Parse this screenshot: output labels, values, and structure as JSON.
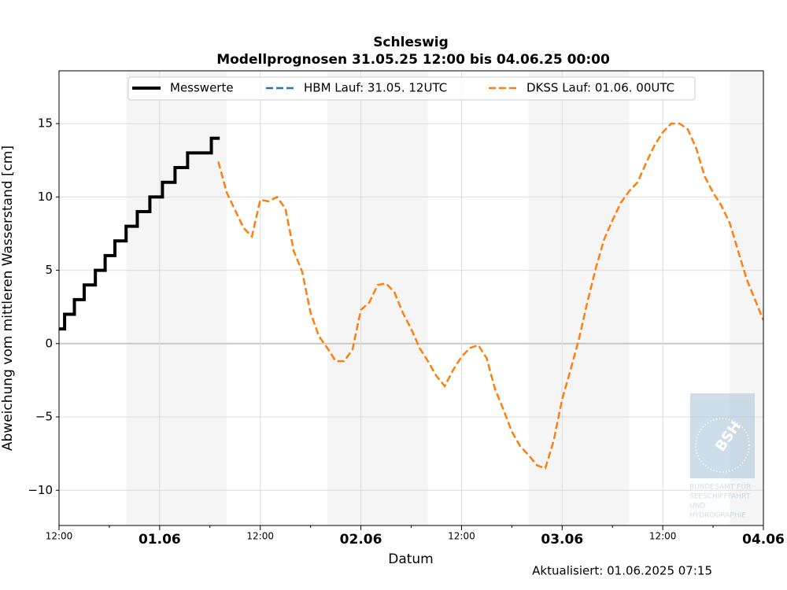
{
  "chart_data": {
    "type": "line",
    "title": "Schleswig",
    "subtitle": "Modellprognosen 31.05.25 12:00 bis 04.06.25 00:00",
    "xlabel": "Datum",
    "ylabel": "Abweichung vom mittleren Wasserstand [cm]",
    "footer": "Aktualisiert: 01.06.2025 07:15",
    "watermark": {
      "logo": "BSH",
      "lines": [
        "BUNDESAMT FÜR",
        "SEESCHIFFFAHRT",
        "UND",
        "HYDROGRAPHIE"
      ]
    },
    "xlim": [
      "31.05.25 12:00",
      "04.06.25 00:00"
    ],
    "ylim": [
      -12.4,
      18.6
    ],
    "yticks": [
      {
        "value": -10,
        "label": "−10"
      },
      {
        "value": -5,
        "label": "−5"
      },
      0,
      5,
      10,
      15
    ],
    "xticks": [
      {
        "value": "31.05.25 12:00",
        "label": "12:00"
      },
      {
        "value": "01.06.25 00:00",
        "label": "01.06"
      },
      {
        "value": "01.06.25 12:00",
        "label": "12:00"
      },
      {
        "value": "02.06.25 00:00",
        "label": "02.06"
      },
      {
        "value": "02.06.25 12:00",
        "label": "12:00"
      },
      {
        "value": "03.06.25 00:00",
        "label": "03.06"
      },
      {
        "value": "03.06.25 12:00",
        "label": "12:00"
      },
      {
        "value": "04.06.25 00:00",
        "label": "04.06"
      }
    ],
    "xminorticks": [
      "31.05.25 18:00",
      "01.06.25 06:00",
      "01.06.25 18:00",
      "02.06.25 06:00",
      "02.06.25 18:00",
      "03.06.25 06:00",
      "03.06.25 18:00"
    ],
    "shaded_spans": [
      [
        "31.05.25 20:00",
        "01.06.25 08:00"
      ],
      [
        "01.06.25 20:00",
        "02.06.25 08:00"
      ],
      [
        "02.06.25 20:00",
        "03.06.25 08:00"
      ],
      [
        "03.06.25 20:00",
        "04.06.25 00:00"
      ]
    ],
    "grid": true,
    "legend": "upper center",
    "series": [
      {
        "name": "Messwerte",
        "color": "#000000",
        "style": "steps",
        "x": [
          "31.05.25 12:00",
          "31.05.25 12:40",
          "31.05.25 13:50",
          "31.05.25 15:00",
          "31.05.25 16:20",
          "31.05.25 17:30",
          "31.05.25 18:40",
          "31.05.25 20:00",
          "31.05.25 21:20",
          "31.05.25 22:50",
          "01.06.25 00:20",
          "01.06.25 01:50",
          "01.06.25 03:20",
          "01.06.25 06:10",
          "01.06.25 07:10"
        ],
        "values": [
          1,
          2,
          3,
          4,
          5,
          6,
          7,
          8,
          9,
          10,
          11,
          12,
          13,
          14,
          14
        ]
      },
      {
        "name": "HBM Lauf: 31.05. 12UTC",
        "color": "#1f77b4",
        "style": "dashed",
        "x": [],
        "values": []
      },
      {
        "name": "DKSS Lauf: 01.06. 00UTC",
        "color": "#ff7f0e",
        "style": "dashed",
        "x": [
          "01.06.25 07:00",
          "01.06.25 08:00",
          "01.06.25 09:00",
          "01.06.25 10:00",
          "01.06.25 11:00",
          "01.06.25 12:00",
          "01.06.25 13:00",
          "01.06.25 14:00",
          "01.06.25 15:00",
          "01.06.25 16:00",
          "01.06.25 17:00",
          "01.06.25 18:00",
          "01.06.25 19:00",
          "01.06.25 20:00",
          "01.06.25 21:00",
          "01.06.25 22:00",
          "01.06.25 23:00",
          "02.06.25 00:00",
          "02.06.25 01:00",
          "02.06.25 02:00",
          "02.06.25 03:00",
          "02.06.25 04:00",
          "02.06.25 05:00",
          "02.06.25 06:00",
          "02.06.25 07:00",
          "02.06.25 08:00",
          "02.06.25 09:00",
          "02.06.25 10:00",
          "02.06.25 11:00",
          "02.06.25 12:00",
          "02.06.25 13:00",
          "02.06.25 14:00",
          "02.06.25 15:00",
          "02.06.25 16:00",
          "02.06.25 17:00",
          "02.06.25 18:00",
          "02.06.25 19:00",
          "02.06.25 20:00",
          "02.06.25 21:00",
          "02.06.25 22:00",
          "02.06.25 23:00",
          "03.06.25 00:00",
          "03.06.25 01:00",
          "03.06.25 02:00",
          "03.06.25 03:00",
          "03.06.25 04:00",
          "03.06.25 05:00",
          "03.06.25 06:00",
          "03.06.25 07:00",
          "03.06.25 08:00",
          "03.06.25 09:00",
          "03.06.25 10:00",
          "03.06.25 11:00",
          "03.06.25 12:00",
          "03.06.25 13:00",
          "03.06.25 14:00",
          "03.06.25 15:00",
          "03.06.25 16:00",
          "03.06.25 17:00",
          "03.06.25 18:00",
          "03.06.25 19:00",
          "03.06.25 20:00",
          "03.06.25 21:00",
          "03.06.25 22:00",
          "03.06.25 23:00",
          "04.06.25 00:00"
        ],
        "values": [
          12.4,
          10.3,
          9.1,
          7.9,
          7.3,
          9.8,
          9.7,
          10.0,
          9.2,
          6.3,
          4.9,
          2.1,
          0.5,
          -0.3,
          -1.2,
          -1.2,
          -0.4,
          2.3,
          2.8,
          4.0,
          4.1,
          3.5,
          2.1,
          1.0,
          -0.3,
          -1.2,
          -2.2,
          -2.9,
          -1.8,
          -0.9,
          -0.3,
          -0.1,
          -1.0,
          -3.1,
          -4.5,
          -6.0,
          -7.0,
          -7.6,
          -8.3,
          -8.5,
          -6.6,
          -3.8,
          -1.8,
          0.3,
          2.8,
          5.1,
          7.1,
          8.4,
          9.6,
          10.4,
          11.0,
          12.3,
          13.5,
          14.4,
          15.0,
          15.0,
          14.6,
          13.3,
          11.4,
          10.3,
          9.4,
          8.2,
          6.3,
          4.4,
          3.0,
          1.6
        ]
      }
    ]
  }
}
